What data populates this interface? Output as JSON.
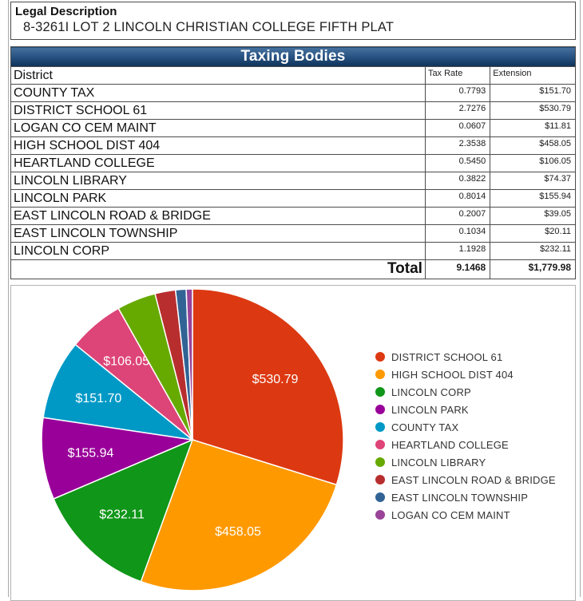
{
  "legal": {
    "title": "Legal Description",
    "value": "8-3261I LOT 2 LINCOLN CHRISTIAN COLLEGE FIFTH PLAT"
  },
  "table": {
    "title": "Taxing Bodies",
    "columns": [
      "District",
      "Tax Rate",
      "Extension"
    ],
    "rows": [
      {
        "district": "COUNTY TAX",
        "tax_rate": "0.7793",
        "extension": "$151.70"
      },
      {
        "district": "DISTRICT SCHOOL 61",
        "tax_rate": "2.7276",
        "extension": "$530.79"
      },
      {
        "district": "LOGAN CO CEM MAINT",
        "tax_rate": "0.0607",
        "extension": "$11.81"
      },
      {
        "district": "HIGH SCHOOL DIST 404",
        "tax_rate": "2.3538",
        "extension": "$458.05"
      },
      {
        "district": "HEARTLAND COLLEGE",
        "tax_rate": "0.5450",
        "extension": "$106.05"
      },
      {
        "district": "LINCOLN LIBRARY",
        "tax_rate": "0.3822",
        "extension": "$74.37"
      },
      {
        "district": "LINCOLN PARK",
        "tax_rate": "0.8014",
        "extension": "$155.94"
      },
      {
        "district": "EAST LINCOLN ROAD & BRIDGE",
        "tax_rate": "0.2007",
        "extension": "$39.05"
      },
      {
        "district": "EAST LINCOLN TOWNSHIP",
        "tax_rate": "0.1034",
        "extension": "$20.11"
      },
      {
        "district": "LINCOLN CORP",
        "tax_rate": "1.1928",
        "extension": "$232.11"
      }
    ],
    "total": {
      "label": "Total",
      "tax_rate": "9.1468",
      "extension": "$1,779.98"
    }
  },
  "chart_data": {
    "type": "pie",
    "title": "",
    "categories": [
      "DISTRICT SCHOOL 61",
      "HIGH SCHOOL DIST 404",
      "LINCOLN CORP",
      "LINCOLN PARK",
      "COUNTY TAX",
      "HEARTLAND COLLEGE",
      "LINCOLN LIBRARY",
      "EAST LINCOLN ROAD & BRIDGE",
      "EAST LINCOLN TOWNSHIP",
      "LOGAN CO CEM MAINT"
    ],
    "values": [
      530.79,
      458.05,
      232.11,
      155.94,
      151.7,
      106.05,
      74.37,
      39.05,
      20.11,
      11.81
    ],
    "slice_labels": [
      "$530.79",
      "$458.05",
      "$232.11",
      "$155.94",
      "$151.70",
      "$106.05",
      "",
      "",
      "",
      ""
    ],
    "colors": [
      "#dc3912",
      "#ff9900",
      "#109618",
      "#990099",
      "#0099c6",
      "#dd4477",
      "#66aa00",
      "#b82e2e",
      "#316395",
      "#994499"
    ],
    "total": 1779.98,
    "start_angle_deg": 0,
    "direction": "clockwise",
    "legend_position": "right",
    "slice_stroke_color": "#ffffff"
  }
}
